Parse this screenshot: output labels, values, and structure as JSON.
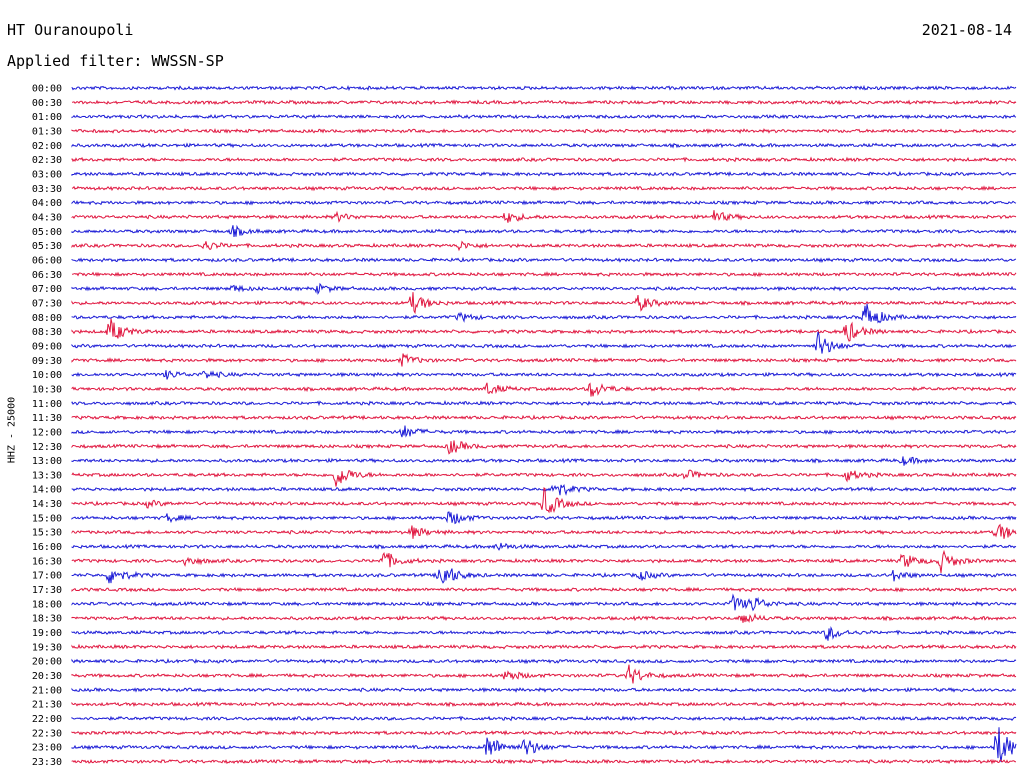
{
  "header": {
    "station": "HT Ouranoupoli",
    "date": "2021-08-14",
    "filter": "Applied filter: WWSSN-SP"
  },
  "colors": {
    "even": "#1a1ad6",
    "odd": "#e0163f",
    "text": "#000000"
  },
  "chart_data": {
    "type": "line",
    "subtype": "helicorder",
    "ylabel": "HHZ - 25000",
    "row_labels": [
      "00:00",
      "00:30",
      "01:00",
      "01:30",
      "02:00",
      "02:30",
      "03:00",
      "03:30",
      "04:00",
      "04:30",
      "05:00",
      "05:30",
      "06:00",
      "06:30",
      "07:00",
      "07:30",
      "08:00",
      "08:30",
      "09:00",
      "09:30",
      "10:00",
      "10:30",
      "11:00",
      "11:30",
      "12:00",
      "12:30",
      "13:00",
      "13:30",
      "14:00",
      "14:30",
      "15:00",
      "15:30",
      "16:00",
      "16:30",
      "17:00",
      "17:30",
      "18:00",
      "18:30",
      "19:00",
      "19:30",
      "20:00",
      "20:30",
      "21:00",
      "21:30",
      "22:00",
      "22:30",
      "23:00",
      "23:30"
    ],
    "row_minutes": 30,
    "events": [
      {
        "row": 9,
        "t": 0.28,
        "amp": 0.4
      },
      {
        "row": 9,
        "t": 0.46,
        "amp": 0.6
      },
      {
        "row": 9,
        "t": 0.68,
        "amp": 0.6
      },
      {
        "row": 10,
        "t": 0.17,
        "amp": 0.5
      },
      {
        "row": 11,
        "t": 0.14,
        "amp": 0.5
      },
      {
        "row": 11,
        "t": 0.41,
        "amp": 0.4
      },
      {
        "row": 14,
        "t": 0.17,
        "amp": 0.3
      },
      {
        "row": 14,
        "t": 0.26,
        "amp": 0.4
      },
      {
        "row": 15,
        "t": 0.36,
        "amp": 1.1
      },
      {
        "row": 15,
        "t": 0.6,
        "amp": 0.8
      },
      {
        "row": 16,
        "t": 0.41,
        "amp": 0.4
      },
      {
        "row": 16,
        "t": 0.84,
        "amp": 1.6
      },
      {
        "row": 17,
        "t": 0.04,
        "amp": 1.3
      },
      {
        "row": 17,
        "t": 0.82,
        "amp": 1.2
      },
      {
        "row": 18,
        "t": 0.79,
        "amp": 1.4
      },
      {
        "row": 19,
        "t": 0.35,
        "amp": 0.6
      },
      {
        "row": 20,
        "t": 0.1,
        "amp": 0.4
      },
      {
        "row": 20,
        "t": 0.14,
        "amp": 0.4
      },
      {
        "row": 21,
        "t": 0.44,
        "amp": 0.6
      },
      {
        "row": 21,
        "t": 0.55,
        "amp": 0.9
      },
      {
        "row": 24,
        "t": 0.35,
        "amp": 0.7
      },
      {
        "row": 25,
        "t": 0.4,
        "amp": 0.8
      },
      {
        "row": 26,
        "t": 0.88,
        "amp": 0.4
      },
      {
        "row": 27,
        "t": 0.28,
        "amp": 1.3
      },
      {
        "row": 27,
        "t": 0.65,
        "amp": 0.5
      },
      {
        "row": 27,
        "t": 0.82,
        "amp": 0.6
      },
      {
        "row": 28,
        "t": 0.51,
        "amp": 1.0
      },
      {
        "row": 29,
        "t": 0.5,
        "amp": 1.5
      },
      {
        "row": 29,
        "t": 0.08,
        "amp": 0.3
      },
      {
        "row": 30,
        "t": 0.4,
        "amp": 0.8
      },
      {
        "row": 30,
        "t": 0.1,
        "amp": 0.4
      },
      {
        "row": 31,
        "t": 0.36,
        "amp": 0.6
      },
      {
        "row": 31,
        "t": 0.98,
        "amp": 1.0
      },
      {
        "row": 32,
        "t": 0.45,
        "amp": 0.4
      },
      {
        "row": 33,
        "t": 0.33,
        "amp": 1.0
      },
      {
        "row": 33,
        "t": 0.12,
        "amp": 0.5
      },
      {
        "row": 33,
        "t": 0.88,
        "amp": 0.8
      },
      {
        "row": 33,
        "t": 0.92,
        "amp": 1.1
      },
      {
        "row": 34,
        "t": 0.04,
        "amp": 1.0
      },
      {
        "row": 34,
        "t": 0.39,
        "amp": 1.6
      },
      {
        "row": 34,
        "t": 0.6,
        "amp": 0.5
      },
      {
        "row": 34,
        "t": 0.87,
        "amp": 0.5
      },
      {
        "row": 36,
        "t": 0.7,
        "amp": 0.8
      },
      {
        "row": 36,
        "t": 0.72,
        "amp": 0.7
      },
      {
        "row": 37,
        "t": 0.71,
        "amp": 0.6
      },
      {
        "row": 38,
        "t": 0.8,
        "amp": 0.8
      },
      {
        "row": 41,
        "t": 0.46,
        "amp": 0.6
      },
      {
        "row": 41,
        "t": 0.59,
        "amp": 1.0
      },
      {
        "row": 46,
        "t": 0.44,
        "amp": 1.3
      },
      {
        "row": 46,
        "t": 0.48,
        "amp": 1.0
      },
      {
        "row": 46,
        "t": 0.98,
        "amp": 2.3
      }
    ]
  }
}
